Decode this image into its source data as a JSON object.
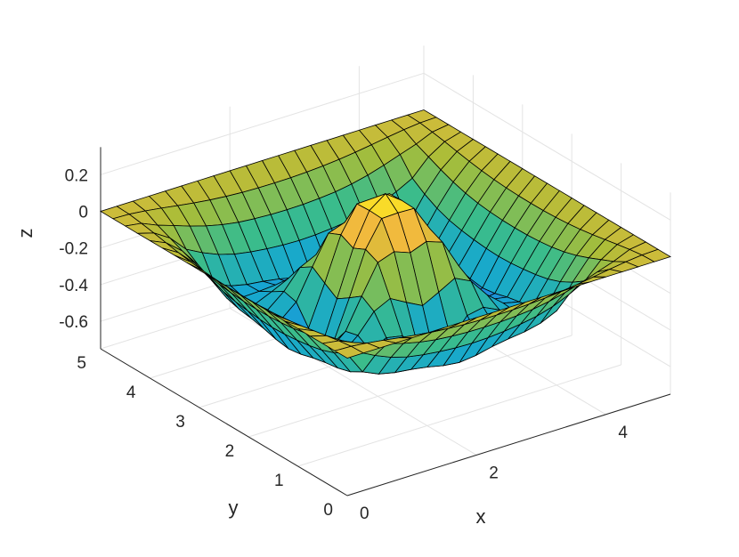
{
  "chart_data": {
    "type": "surface",
    "title": "",
    "xlabel": "x",
    "ylabel": "y",
    "zlabel": "z",
    "xlim": [
      0,
      5
    ],
    "ylim": [
      0,
      5
    ],
    "zlim": [
      -0.75,
      0.35
    ],
    "x_ticks": [
      0,
      2,
      4
    ],
    "y_ticks": [
      0,
      1,
      2,
      3,
      4,
      5
    ],
    "z_ticks": [
      0.2,
      0,
      -0.2,
      -0.4,
      -0.6
    ],
    "x_tick_labels": [
      "0",
      "2",
      "4"
    ],
    "y_tick_labels": [
      "0",
      "1",
      "2",
      "3",
      "4",
      "5"
    ],
    "z_tick_labels": [
      "0.2",
      "0",
      "-0.2",
      "-0.4",
      "-0.6"
    ],
    "grid": true,
    "mesh_lines": 20,
    "surface_peak": {
      "x": 2.5,
      "y": 2.5,
      "z": 0.25
    },
    "surface_minima": [
      {
        "x": 2.5,
        "y": 0.5,
        "z": -0.72
      },
      {
        "x": 2.5,
        "y": 4.5,
        "z": -0.72
      },
      {
        "x": 0.5,
        "y": 2.5,
        "z": -0.72
      },
      {
        "x": 4.5,
        "y": 2.5,
        "z": -0.72
      }
    ],
    "edge_value": 0,
    "colormap": [
      "#3e26a8",
      "#2d66f4",
      "#16a8cf",
      "#3bbc8a",
      "#a9bd38",
      "#f8ba3d",
      "#f9fb15"
    ],
    "edge_color": "#000000"
  }
}
